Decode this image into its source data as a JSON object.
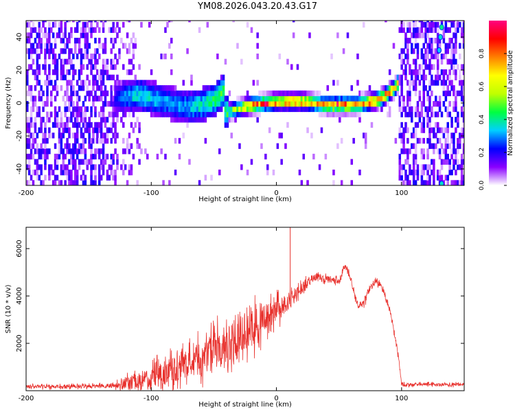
{
  "page": {
    "title": "YM08.2026.043.20.43.G17"
  },
  "colorbar": {
    "label": "Normalized spectral amplitude",
    "ticks": [
      "0.0",
      "0.2",
      "0.4",
      "0.6",
      "0.8"
    ],
    "tick_values": [
      0.0,
      0.2,
      0.4,
      0.6,
      0.8
    ],
    "range": [
      0,
      1
    ],
    "gradient": [
      "#ffffff",
      "#8a00ff",
      "#0000ff",
      "#00d0ff",
      "#00ff40",
      "#c0ff00",
      "#ffff00",
      "#ff8000",
      "#ff0000",
      "#ff0080"
    ]
  },
  "colors": {
    "trace": "#e8302c",
    "frame": "#000000"
  },
  "chart_data": [
    {
      "type": "heatmap",
      "title": "YM08.2026.043.20.43.G17",
      "xlabel": "Height of straight line (km)",
      "ylabel": "Frequency (Hz)",
      "xlim": [
        -200,
        150
      ],
      "ylim": [
        -50,
        50
      ],
      "xticks": [
        -200,
        -100,
        0,
        100
      ],
      "xtick_labels": [
        "-200",
        "-100",
        "0",
        "100"
      ],
      "yticks": [
        -40,
        -20,
        0,
        20,
        40
      ],
      "ytick_labels": [
        "-40",
        "-20",
        "0",
        "20",
        "40"
      ],
      "ridge": {
        "x": [
          -130,
          -120,
          -110,
          -100,
          -90,
          -80,
          -70,
          -60,
          -50,
          -43,
          -42,
          -35,
          -20,
          -10,
          0,
          10,
          20,
          30,
          40,
          50,
          60,
          70,
          75,
          80,
          85,
          90,
          95,
          97
        ],
        "y": [
          3,
          4,
          5,
          3,
          1,
          -1,
          -2,
          -1,
          2,
          7,
          -6,
          -4,
          -1,
          0,
          1,
          1,
          1,
          0,
          -1,
          -1,
          -1,
          0,
          1,
          2,
          4,
          7,
          10,
          14
        ],
        "amplitude": [
          0.2,
          0.35,
          0.45,
          0.4,
          0.35,
          0.35,
          0.38,
          0.45,
          0.5,
          0.55,
          0.5,
          0.6,
          0.9,
          0.95,
          0.9,
          0.92,
          0.9,
          0.88,
          0.9,
          0.95,
          0.92,
          0.9,
          0.92,
          0.95,
          0.92,
          0.9,
          0.88,
          0.85
        ]
      },
      "gaps_x": [
        [
          -42,
          -43
        ]
      ],
      "noise_regions_x": [
        [
          -200,
          -130
        ],
        [
          97,
          150
        ]
      ],
      "isolated_peaks": [
        {
          "x": 132,
          "y": 46,
          "amplitude": 0.45
        },
        {
          "x": 131,
          "y": 40,
          "amplitude": 0.4
        },
        {
          "x": 130,
          "y": 32,
          "amplitude": 0.35
        },
        {
          "x": 132,
          "y": -49,
          "amplitude": 0.4
        }
      ]
    },
    {
      "type": "line",
      "xlabel": "Height of straight line (km)",
      "ylabel": "SNR (10 * v/v)",
      "xlim": [
        -200,
        150
      ],
      "ylim": [
        0,
        6900
      ],
      "xticks": [
        -200,
        -100,
        0,
        100
      ],
      "xtick_labels": [
        "-200",
        "-100",
        "0",
        "100"
      ],
      "yticks": [
        2000,
        4000,
        6000
      ],
      "ytick_labels": [
        "2000",
        "4000",
        "6000"
      ],
      "series": [
        {
          "name": "SNR",
          "x": [
            -200,
            -130,
            -120,
            -110,
            -100,
            -90,
            -80,
            -70,
            -60,
            -50,
            -40,
            -30,
            -20,
            -10,
            0,
            10,
            20,
            30,
            40,
            50,
            55,
            60,
            65,
            70,
            75,
            80,
            85,
            90,
            93,
            96,
            98,
            100,
            110,
            120,
            130,
            140,
            150
          ],
          "mean": [
            170,
            200,
            300,
            450,
            600,
            750,
            900,
            1100,
            1350,
            1650,
            1950,
            2300,
            2650,
            3000,
            3350,
            3750,
            4300,
            4800,
            4700,
            4600,
            5300,
            4600,
            3600,
            3700,
            4400,
            4650,
            4300,
            3550,
            2800,
            1900,
            1300,
            250,
            250,
            280,
            260,
            250,
            250
          ],
          "spread": [
            100,
            120,
            380,
            500,
            600,
            700,
            800,
            900,
            1000,
            1100,
            1200,
            1200,
            1100,
            900,
            700,
            500,
            300,
            250,
            200,
            200,
            200,
            200,
            200,
            200,
            200,
            200,
            200,
            200,
            200,
            200,
            200,
            100,
            90,
            90,
            90,
            90,
            90
          ]
        }
      ],
      "spikes": [
        {
          "x": 11,
          "y": 6900
        }
      ]
    }
  ]
}
